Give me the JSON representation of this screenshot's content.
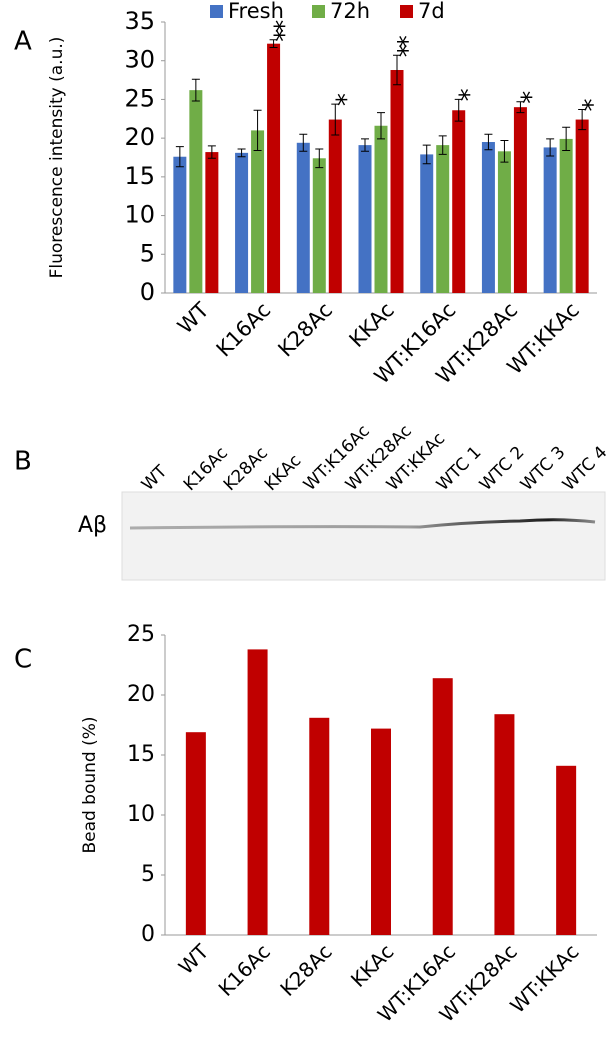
{
  "chart_data": [
    {
      "type": "bar",
      "panel_label": "A",
      "ylabel": "Fluorescence intensity (a.u.)",
      "categories": [
        "WT",
        "K16Ac",
        "K28Ac",
        "KKAc",
        "WT:K16Ac",
        "WT:K28Ac",
        "WT:KKAc"
      ],
      "series": [
        {
          "name": "Fresh",
          "color": "#4472c4",
          "values": [
            17.6,
            18.1,
            19.4,
            19.1,
            17.9,
            19.5,
            18.8
          ],
          "errors": [
            1.3,
            0.5,
            1.1,
            0.8,
            1.2,
            1.0,
            1.1
          ]
        },
        {
          "name": "72h",
          "color": "#70ad47",
          "values": [
            26.2,
            21.0,
            17.4,
            21.6,
            19.1,
            18.3,
            19.9
          ],
          "errors": [
            1.4,
            2.6,
            1.2,
            1.7,
            1.2,
            1.4,
            1.5
          ]
        },
        {
          "name": "7d",
          "color": "#c00000",
          "values": [
            18.2,
            32.2,
            22.4,
            28.8,
            23.6,
            24.0,
            22.4
          ],
          "errors": [
            0.8,
            0.5,
            2.0,
            1.9,
            1.4,
            0.7,
            1.3
          ],
          "markers": [
            null,
            "**",
            "*",
            "**",
            "*",
            "*",
            "*"
          ]
        }
      ],
      "ylim": [
        0,
        35
      ],
      "yticks": [
        0,
        5,
        10,
        15,
        20,
        25,
        30,
        35
      ],
      "grid": false,
      "legend": "top"
    },
    {
      "type": "bar",
      "panel_label": "C",
      "ylabel": "Bead bound (%)",
      "categories": [
        "WT",
        "K16Ac",
        "K28Ac",
        "KKAc",
        "WT:K16Ac",
        "WT:K28Ac",
        "WT:KKAc"
      ],
      "values": [
        16.9,
        23.8,
        18.1,
        17.2,
        21.4,
        18.4,
        14.1
      ],
      "color": "#c00000",
      "ylim": [
        0,
        25
      ],
      "yticks": [
        0,
        5,
        10,
        15,
        20,
        25
      ],
      "grid": false
    }
  ],
  "blot": {
    "panel_label": "B",
    "band_label": "Aβ",
    "lanes": [
      "WT",
      "K16Ac",
      "K28Ac",
      "KKAc",
      "WT:K16Ac",
      "WT:K28Ac",
      "WT:KKAc",
      "WTC 1",
      "WTC 2",
      "WTC 3",
      "WTC 4"
    ]
  }
}
